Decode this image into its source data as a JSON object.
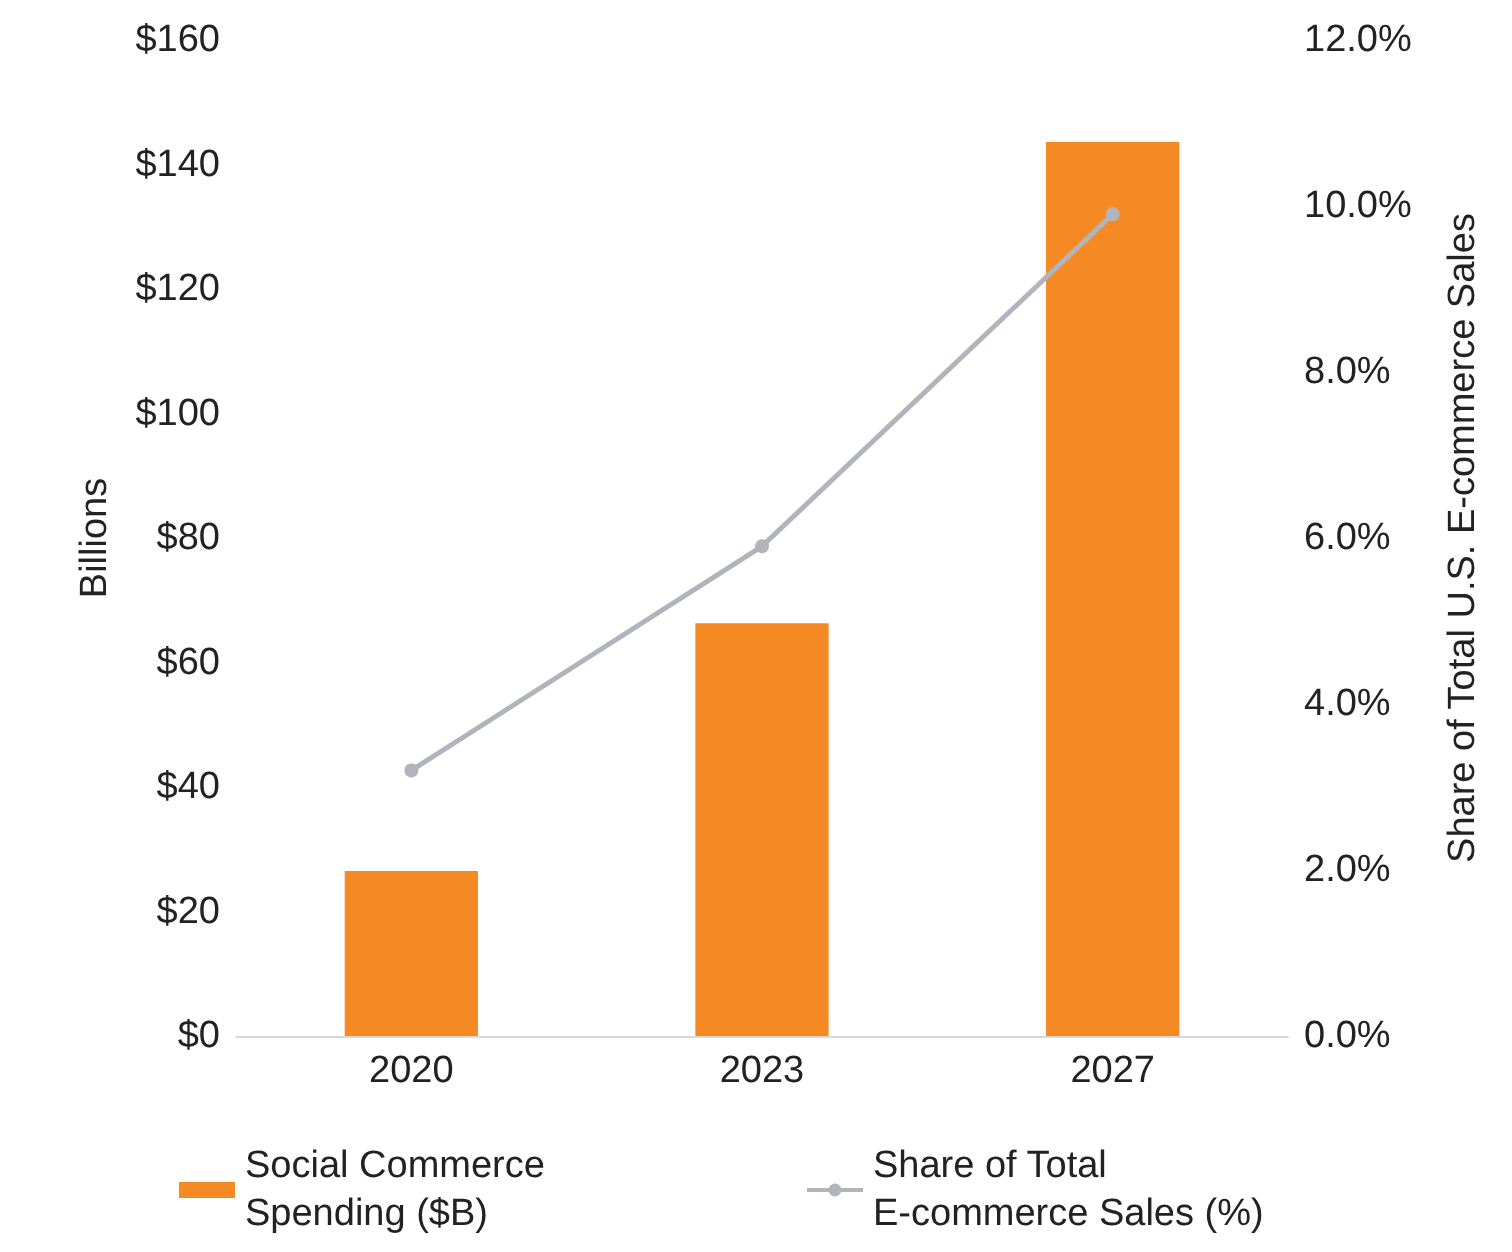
{
  "chart_data": {
    "type": "bar",
    "categories": [
      "2020",
      "2023",
      "2027"
    ],
    "ylabel": "Billions",
    "y2label": "Share of Total U.S. E-commerce Sales",
    "series": [
      {
        "name": "Social Commerce Spending ($B)",
        "color": "#f58a25",
        "values": [
          26.5,
          66.3,
          143.6
        ]
      },
      {
        "name": "Share of Total E-commerce Sales (%)",
        "type": "line",
        "axis": "y2",
        "color": "#b2b4bb",
        "marker": "circle",
        "values": [
          3.2,
          5.9,
          9.9
        ]
      }
    ],
    "ylim": [
      0,
      160
    ],
    "yticks": [
      {
        "value": 0,
        "label": "$0"
      },
      {
        "value": 20,
        "label": "$20"
      },
      {
        "value": 40,
        "label": "$40"
      },
      {
        "value": 60,
        "label": "$60"
      },
      {
        "value": 80,
        "label": "$80"
      },
      {
        "value": 100,
        "label": "$100"
      },
      {
        "value": 120,
        "label": "$120"
      },
      {
        "value": 140,
        "label": "$140"
      },
      {
        "value": 160,
        "label": "$160"
      }
    ],
    "y2lim": [
      0,
      12
    ],
    "y2ticks": [
      {
        "value": 0,
        "label": "0.0%"
      },
      {
        "value": 2,
        "label": "2.0%"
      },
      {
        "value": 4,
        "label": "4.0%"
      },
      {
        "value": 6,
        "label": "6.0%"
      },
      {
        "value": 8,
        "label": "8.0%"
      },
      {
        "value": 10,
        "label": "10.0%"
      },
      {
        "value": 12,
        "label": "12.0%"
      }
    ],
    "grid": false,
    "legend": "bottom"
  }
}
